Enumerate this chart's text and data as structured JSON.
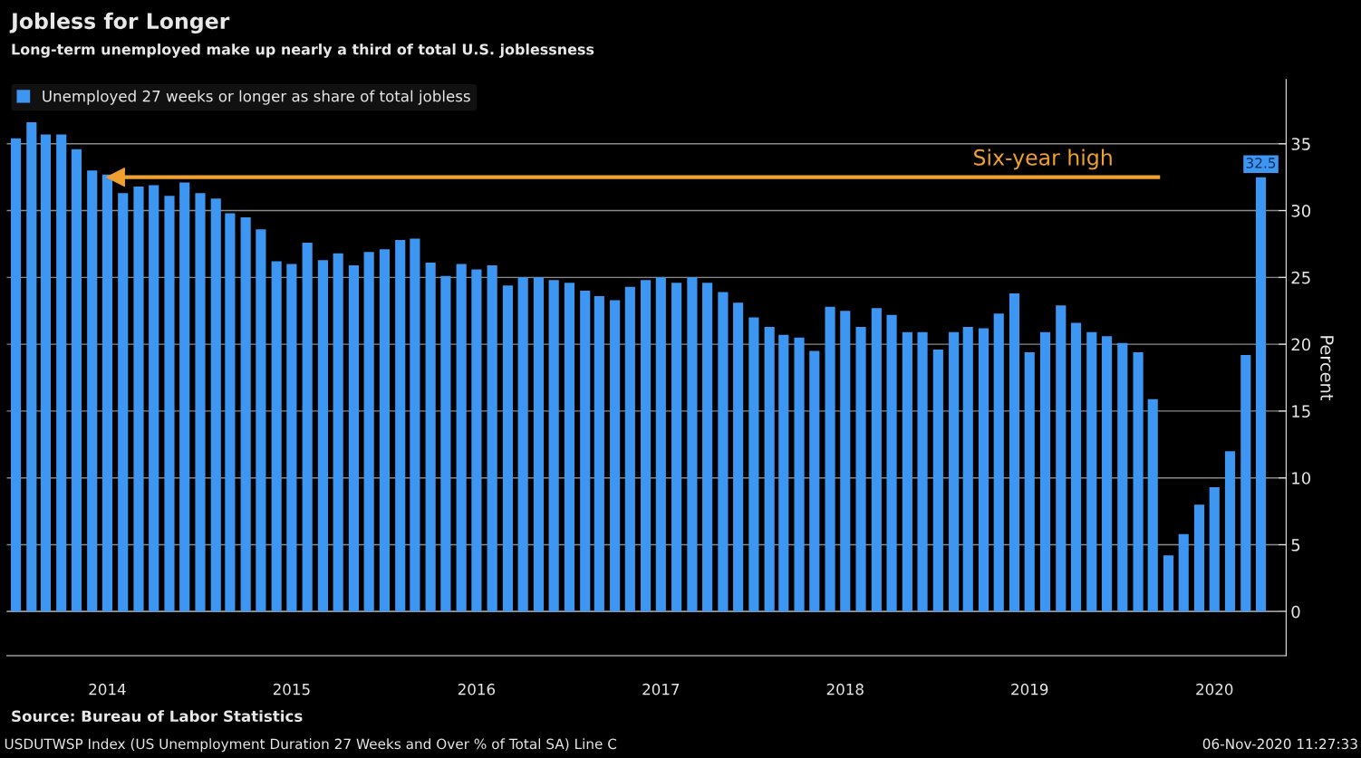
{
  "chart_data": {
    "type": "bar",
    "title": "Jobless for Longer",
    "subtitle": "Long-term unemployed make up nearly a third of total U.S. joblessness",
    "ylabel": "Percent",
    "x": [
      "2014-01",
      "2014-02",
      "2014-03",
      "2014-04",
      "2014-05",
      "2014-06",
      "2014-07",
      "2014-08",
      "2014-09",
      "2014-10",
      "2014-11",
      "2014-12",
      "2015-01",
      "2015-02",
      "2015-03",
      "2015-04",
      "2015-05",
      "2015-06",
      "2015-07",
      "2015-08",
      "2015-09",
      "2015-10",
      "2015-11",
      "2015-12",
      "2016-01",
      "2016-02",
      "2016-03",
      "2016-04",
      "2016-05",
      "2016-06",
      "2016-07",
      "2016-08",
      "2016-09",
      "2016-10",
      "2016-11",
      "2016-12",
      "2017-01",
      "2017-02",
      "2017-03",
      "2017-04",
      "2017-05",
      "2017-06",
      "2017-07",
      "2017-08",
      "2017-09",
      "2017-10",
      "2017-11",
      "2017-12",
      "2018-01",
      "2018-02",
      "2018-03",
      "2018-04",
      "2018-05",
      "2018-06",
      "2018-07",
      "2018-08",
      "2018-09",
      "2018-10",
      "2018-11",
      "2018-12",
      "2019-01",
      "2019-02",
      "2019-03",
      "2019-04",
      "2019-05",
      "2019-06",
      "2019-07",
      "2019-08",
      "2019-09",
      "2019-10",
      "2019-11",
      "2019-12",
      "2020-01",
      "2020-02",
      "2020-03",
      "2020-04",
      "2020-05",
      "2020-06",
      "2020-07",
      "2020-08",
      "2020-09",
      "2020-10"
    ],
    "series": [
      {
        "name": "Unemployed 27 weeks or longer as share of total jobless",
        "color": "#3d97f2",
        "values": [
          35.4,
          36.6,
          35.7,
          35.7,
          34.6,
          33.0,
          32.7,
          31.3,
          31.8,
          31.9,
          31.1,
          32.1,
          31.3,
          30.9,
          29.8,
          29.5,
          28.6,
          26.2,
          26.0,
          27.6,
          26.3,
          26.8,
          25.9,
          26.9,
          27.1,
          27.8,
          27.9,
          26.1,
          25.1,
          26.0,
          25.6,
          25.9,
          24.4,
          25.0,
          25.0,
          24.8,
          24.6,
          24.0,
          23.6,
          23.3,
          24.3,
          24.8,
          25.0,
          24.6,
          25.0,
          24.6,
          23.9,
          23.1,
          22.0,
          21.3,
          20.7,
          20.5,
          19.5,
          22.8,
          22.5,
          21.3,
          22.7,
          22.2,
          20.9,
          20.9,
          19.6,
          20.9,
          21.3,
          21.2,
          22.3,
          23.8,
          19.4,
          20.9,
          22.9,
          21.6,
          20.9,
          20.6,
          20.1,
          19.4,
          15.9,
          4.2,
          5.8,
          8.0,
          9.3,
          12.0,
          19.2,
          32.5
        ],
        "value_labels": [
          null,
          null,
          null,
          null,
          null,
          null,
          null,
          null,
          null,
          null,
          null,
          null,
          null,
          null,
          null,
          null,
          null,
          null,
          null,
          null,
          null,
          null,
          null,
          null,
          null,
          null,
          null,
          null,
          null,
          null,
          null,
          null,
          null,
          null,
          null,
          null,
          null,
          null,
          null,
          null,
          null,
          null,
          null,
          null,
          null,
          null,
          null,
          null,
          null,
          null,
          null,
          null,
          null,
          null,
          null,
          null,
          null,
          null,
          null,
          null,
          null,
          null,
          null,
          null,
          null,
          null,
          null,
          null,
          null,
          null,
          null,
          null,
          null,
          null,
          null,
          null,
          null,
          null,
          null,
          null,
          null,
          "32.5"
        ]
      }
    ],
    "xlim": [
      "2013-12-14",
      "2020-11-20"
    ],
    "xticks": [
      {
        "value": "2014-07-01",
        "label": "2014"
      },
      {
        "value": "2015-07-01",
        "label": "2015"
      },
      {
        "value": "2016-07-01",
        "label": "2016"
      },
      {
        "value": "2017-07-01",
        "label": "2017"
      },
      {
        "value": "2018-07-01",
        "label": "2018"
      },
      {
        "value": "2019-07-01",
        "label": "2019"
      },
      {
        "value": "2020-07-01",
        "label": "2020"
      }
    ],
    "ylim": [
      -3.3,
      39.8
    ],
    "yticks": [
      0,
      5,
      10,
      15,
      20,
      25,
      30,
      35
    ],
    "grid": "y",
    "legend": "top left",
    "ref_lines": [
      {
        "axis": "y",
        "value": 32.5,
        "label": "Six-year high",
        "color": "#f0a030"
      }
    ],
    "annotations": [
      "Source: Bureau of Labor Statistics",
      "USDUTWSP Index (US Unemployment Duration 27 Weeks and Over % of Total SA) Line C",
      "06-Nov-2020 11:27:33"
    ]
  }
}
